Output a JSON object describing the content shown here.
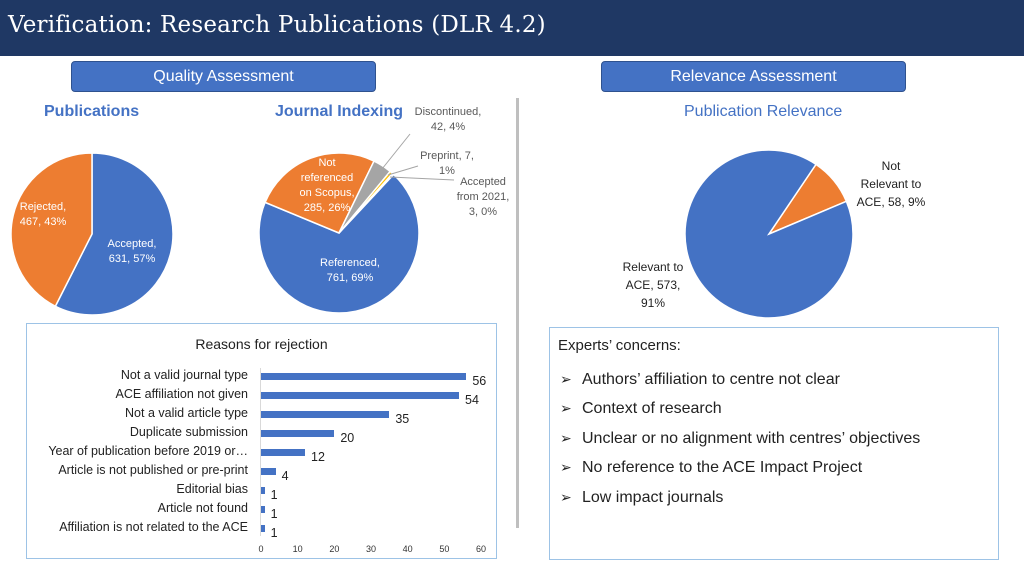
{
  "header": {
    "title": "Verification: Research Publications (DLR 4.2)"
  },
  "sections": {
    "quality": "Quality Assessment",
    "relevance": "Relevance Assessment"
  },
  "publications": {
    "title": "Publications",
    "slices": [
      {
        "label": "Rejected,\n467, 43%",
        "value": 467,
        "color": "#ed7d31"
      },
      {
        "label": "Accepted,\n631, 57%",
        "value": 631,
        "color": "#4472c4"
      }
    ]
  },
  "journal_indexing": {
    "title": "Journal Indexing",
    "slices": [
      {
        "label": "Referenced,\n761, 69%",
        "value": 761,
        "color": "#4472c4"
      },
      {
        "label": "Not\nreferenced\non Scopus,\n285, 26%",
        "value": 285,
        "color": "#ed7d31"
      },
      {
        "label": "Discontinued,\n42, 4%",
        "value": 42,
        "color": "#a5a5a5"
      },
      {
        "label": "Preprint, 7,\n1%",
        "value": 7,
        "color": "#ffc000"
      },
      {
        "label": "Accepted\nfrom 2021,\n3, 0%",
        "value": 3,
        "color": "#5b9bd5"
      }
    ]
  },
  "publication_relevance": {
    "title": "Publication Relevance",
    "slices": [
      {
        "label": "Relevant to\nACE, 573,\n91%",
        "value": 573,
        "color": "#4472c4"
      },
      {
        "label": "Not\nRelevant to\nACE, 58, 9%",
        "value": 58,
        "color": "#ed7d31"
      }
    ]
  },
  "chart_data": {
    "type": "bar",
    "orientation": "horizontal",
    "title": "Reasons for rejection",
    "categories": [
      "Not a valid journal type",
      "ACE affiliation not given",
      "Not a valid article type",
      "Duplicate submission",
      "Year of publication before 2019 or…",
      "Article is not published or pre-print",
      "Editorial bias",
      "Article not found",
      "Affiliation is not related to the ACE"
    ],
    "values": [
      56,
      54,
      35,
      20,
      12,
      4,
      1,
      1,
      1
    ],
    "xticks": [
      0,
      10,
      20,
      30,
      40,
      50,
      60
    ],
    "xlim": [
      0,
      60
    ],
    "color": "#4472c4"
  },
  "concerns": {
    "title": "Experts’ concerns:",
    "items": [
      "Authors’ affiliation to centre not clear",
      "Context of research",
      "Unclear or no alignment with centres’ objectives",
      "No reference to the ACE Impact Project",
      "Low impact journals"
    ]
  }
}
